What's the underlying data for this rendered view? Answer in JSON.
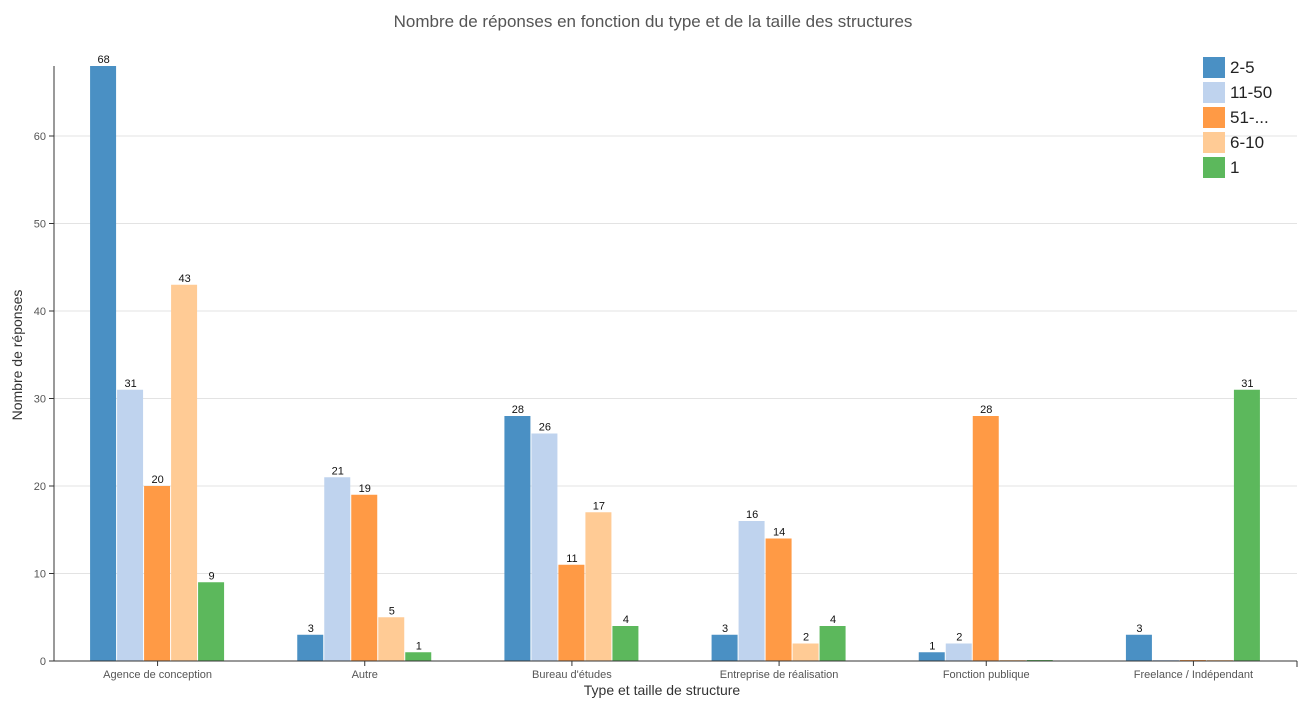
{
  "chart_data": {
    "type": "bar",
    "title": "Nombre de réponses en fonction du type et de la taille des structures",
    "xlabel": "Type et taille de structure",
    "ylabel": "Nombre de réponses",
    "ylim": [
      0,
      68
    ],
    "yticks": [
      0,
      10,
      20,
      30,
      40,
      50,
      60
    ],
    "grid": true,
    "legend_position": "top-right",
    "categories": [
      "Agence de conception",
      "Autre",
      "Bureau d'études",
      "Entreprise de réalisation",
      "Fonction publique",
      "Freelance / Indépendant"
    ],
    "series": [
      {
        "name": "2-5",
        "color": "#4a90c4",
        "values": [
          68,
          3,
          28,
          3,
          1,
          3
        ]
      },
      {
        "name": "11-50",
        "color": "#bfd3ee",
        "values": [
          31,
          21,
          26,
          16,
          2,
          0
        ]
      },
      {
        "name": "51-...",
        "color": "#ff9a45",
        "values": [
          20,
          19,
          11,
          14,
          28,
          0
        ]
      },
      {
        "name": "6-10",
        "color": "#ffcb95",
        "values": [
          43,
          5,
          17,
          2,
          0,
          0
        ]
      },
      {
        "name": "1",
        "color": "#5cb85c",
        "values": [
          9,
          1,
          4,
          4,
          0,
          31
        ]
      }
    ]
  }
}
